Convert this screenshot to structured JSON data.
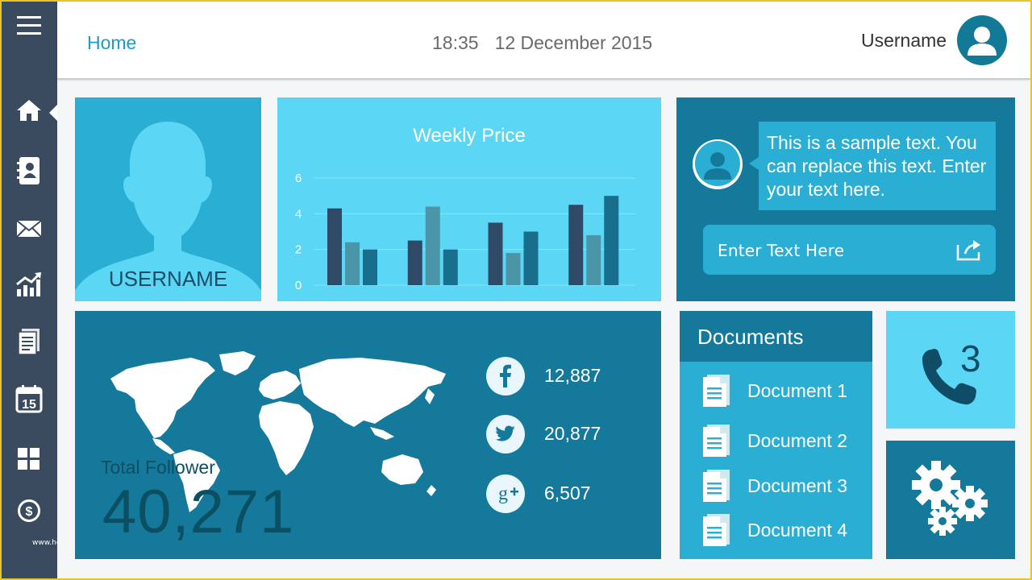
{
  "header": {
    "home_label": "Home",
    "time": "18:35",
    "date": "12 December 2015",
    "username": "Username"
  },
  "sidebar": {
    "items": [
      {
        "icon": "menu-icon"
      },
      {
        "icon": "home-icon",
        "active": true
      },
      {
        "icon": "contacts-icon"
      },
      {
        "icon": "mail-icon"
      },
      {
        "icon": "analytics-icon"
      },
      {
        "icon": "documents-icon"
      },
      {
        "icon": "calendar-icon",
        "label": "15"
      },
      {
        "icon": "grid-icon"
      },
      {
        "icon": "dollar-icon"
      }
    ],
    "watermark": "www.heritagechristiancollege.com"
  },
  "profile": {
    "name": "USERNAME"
  },
  "chart_data": {
    "type": "bar",
    "title": "Weekly Price",
    "categories": [
      "",
      "",
      "",
      ""
    ],
    "series": [
      {
        "values": [
          4.3,
          2.5,
          3.5,
          4.5
        ],
        "color": "#2f4a66"
      },
      {
        "values": [
          2.4,
          4.4,
          1.8,
          2.8
        ],
        "color": "#4a96a8"
      },
      {
        "values": [
          2.0,
          2.0,
          3.0,
          5.0
        ],
        "color": "#176f8d"
      }
    ],
    "yticks": [
      "0",
      "2",
      "4",
      "6"
    ],
    "ylim": [
      0,
      6
    ],
    "grid": true
  },
  "message": {
    "text": "This is a sample text. You can replace this text. Enter your text here.",
    "input_placeholder": "Enter Text Here"
  },
  "followers": {
    "label": "Total Follower",
    "total": "40,271",
    "social": [
      {
        "network": "facebook-icon",
        "count": "12,887"
      },
      {
        "network": "twitter-icon",
        "count": "20,877"
      },
      {
        "network": "google-plus-icon",
        "count": "6,507"
      }
    ]
  },
  "documents": {
    "title": "Documents",
    "items": [
      "Document 1",
      "Document 2",
      "Document 3",
      "Document 4"
    ]
  },
  "phone": {
    "count": "3"
  },
  "colors": {
    "sidebar": "#3a4b60",
    "dark_tile": "#14799a",
    "mid_tile": "#2aaed4",
    "light_tile": "#5cd6f5",
    "accent_text": "#1f9bc3"
  }
}
